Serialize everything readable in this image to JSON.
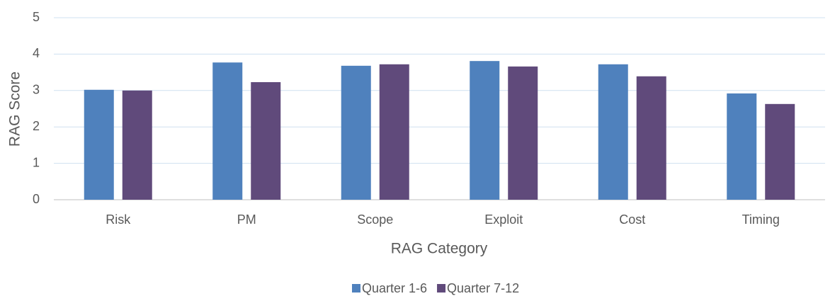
{
  "chart_data": {
    "type": "bar",
    "x_label": "RAG Category",
    "y_label": "RAG Score",
    "categories": [
      "Risk",
      "PM",
      "Scope",
      "Exploit",
      "Cost",
      "Timing"
    ],
    "series": [
      {
        "name": "Quarter 1-6",
        "color": "#4f81bd",
        "values": [
          3.02,
          3.77,
          3.68,
          3.81,
          3.72,
          2.92
        ]
      },
      {
        "name": "Quarter 7-12",
        "color": "#604a7b",
        "values": [
          3.0,
          3.23,
          3.72,
          3.66,
          3.39,
          2.63
        ]
      }
    ],
    "ylim": [
      0,
      5
    ],
    "yticks": [
      0,
      1,
      2,
      3,
      4,
      5
    ],
    "grid": true,
    "legend": "bottom"
  }
}
